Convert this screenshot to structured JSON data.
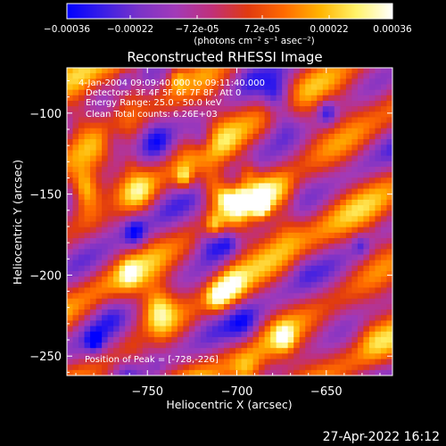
{
  "colorbar": {
    "ticks": [
      "-0.00036",
      "-0.00022",
      "-7.2e-05",
      "7.2e-05",
      "0.00022",
      "0.00036"
    ],
    "units": "(photons cm⁻² s⁻¹ asec⁻²)",
    "colors": [
      "#0000ff",
      "#3a1ee6",
      "#7b33c8",
      "#a23ab8",
      "#c0307a",
      "#e03a10",
      "#ff6a00",
      "#ffb400",
      "#fff36a",
      "#ffffff"
    ]
  },
  "chart_data": {
    "type": "heatmap",
    "title": "Reconstructed RHESSI Image",
    "xlabel": "Heliocentric X (arcsec)",
    "ylabel": "Heliocentric Y (arcsec)",
    "xlim": [
      -795,
      -613
    ],
    "ylim": [
      -262,
      -72
    ],
    "xticks": [
      -750,
      -700,
      -650
    ],
    "yticks": [
      -100,
      -150,
      -200,
      -250
    ],
    "xticklabels": [
      "−750",
      "−700",
      "−650"
    ],
    "yticklabels": [
      "−100",
      "−150",
      "−200",
      "−250"
    ],
    "vlim": [
      -0.00036,
      0.00036
    ],
    "annotations": [
      "4-Jan-2004 09:09:40.000 to 09:11:40.000",
      "Detectors: 3F 4F 5F 6F 7F 8F, Att 0",
      "Energy Range: 25.0 - 50.0 keV",
      "Clean     Total counts: 6.26E+03"
    ],
    "peak_label": "Position of Peak = [-728,-226]",
    "peak": [
      -728,
      -226
    ]
  },
  "footer": {
    "date": "27-Apr-2022 16:12"
  }
}
